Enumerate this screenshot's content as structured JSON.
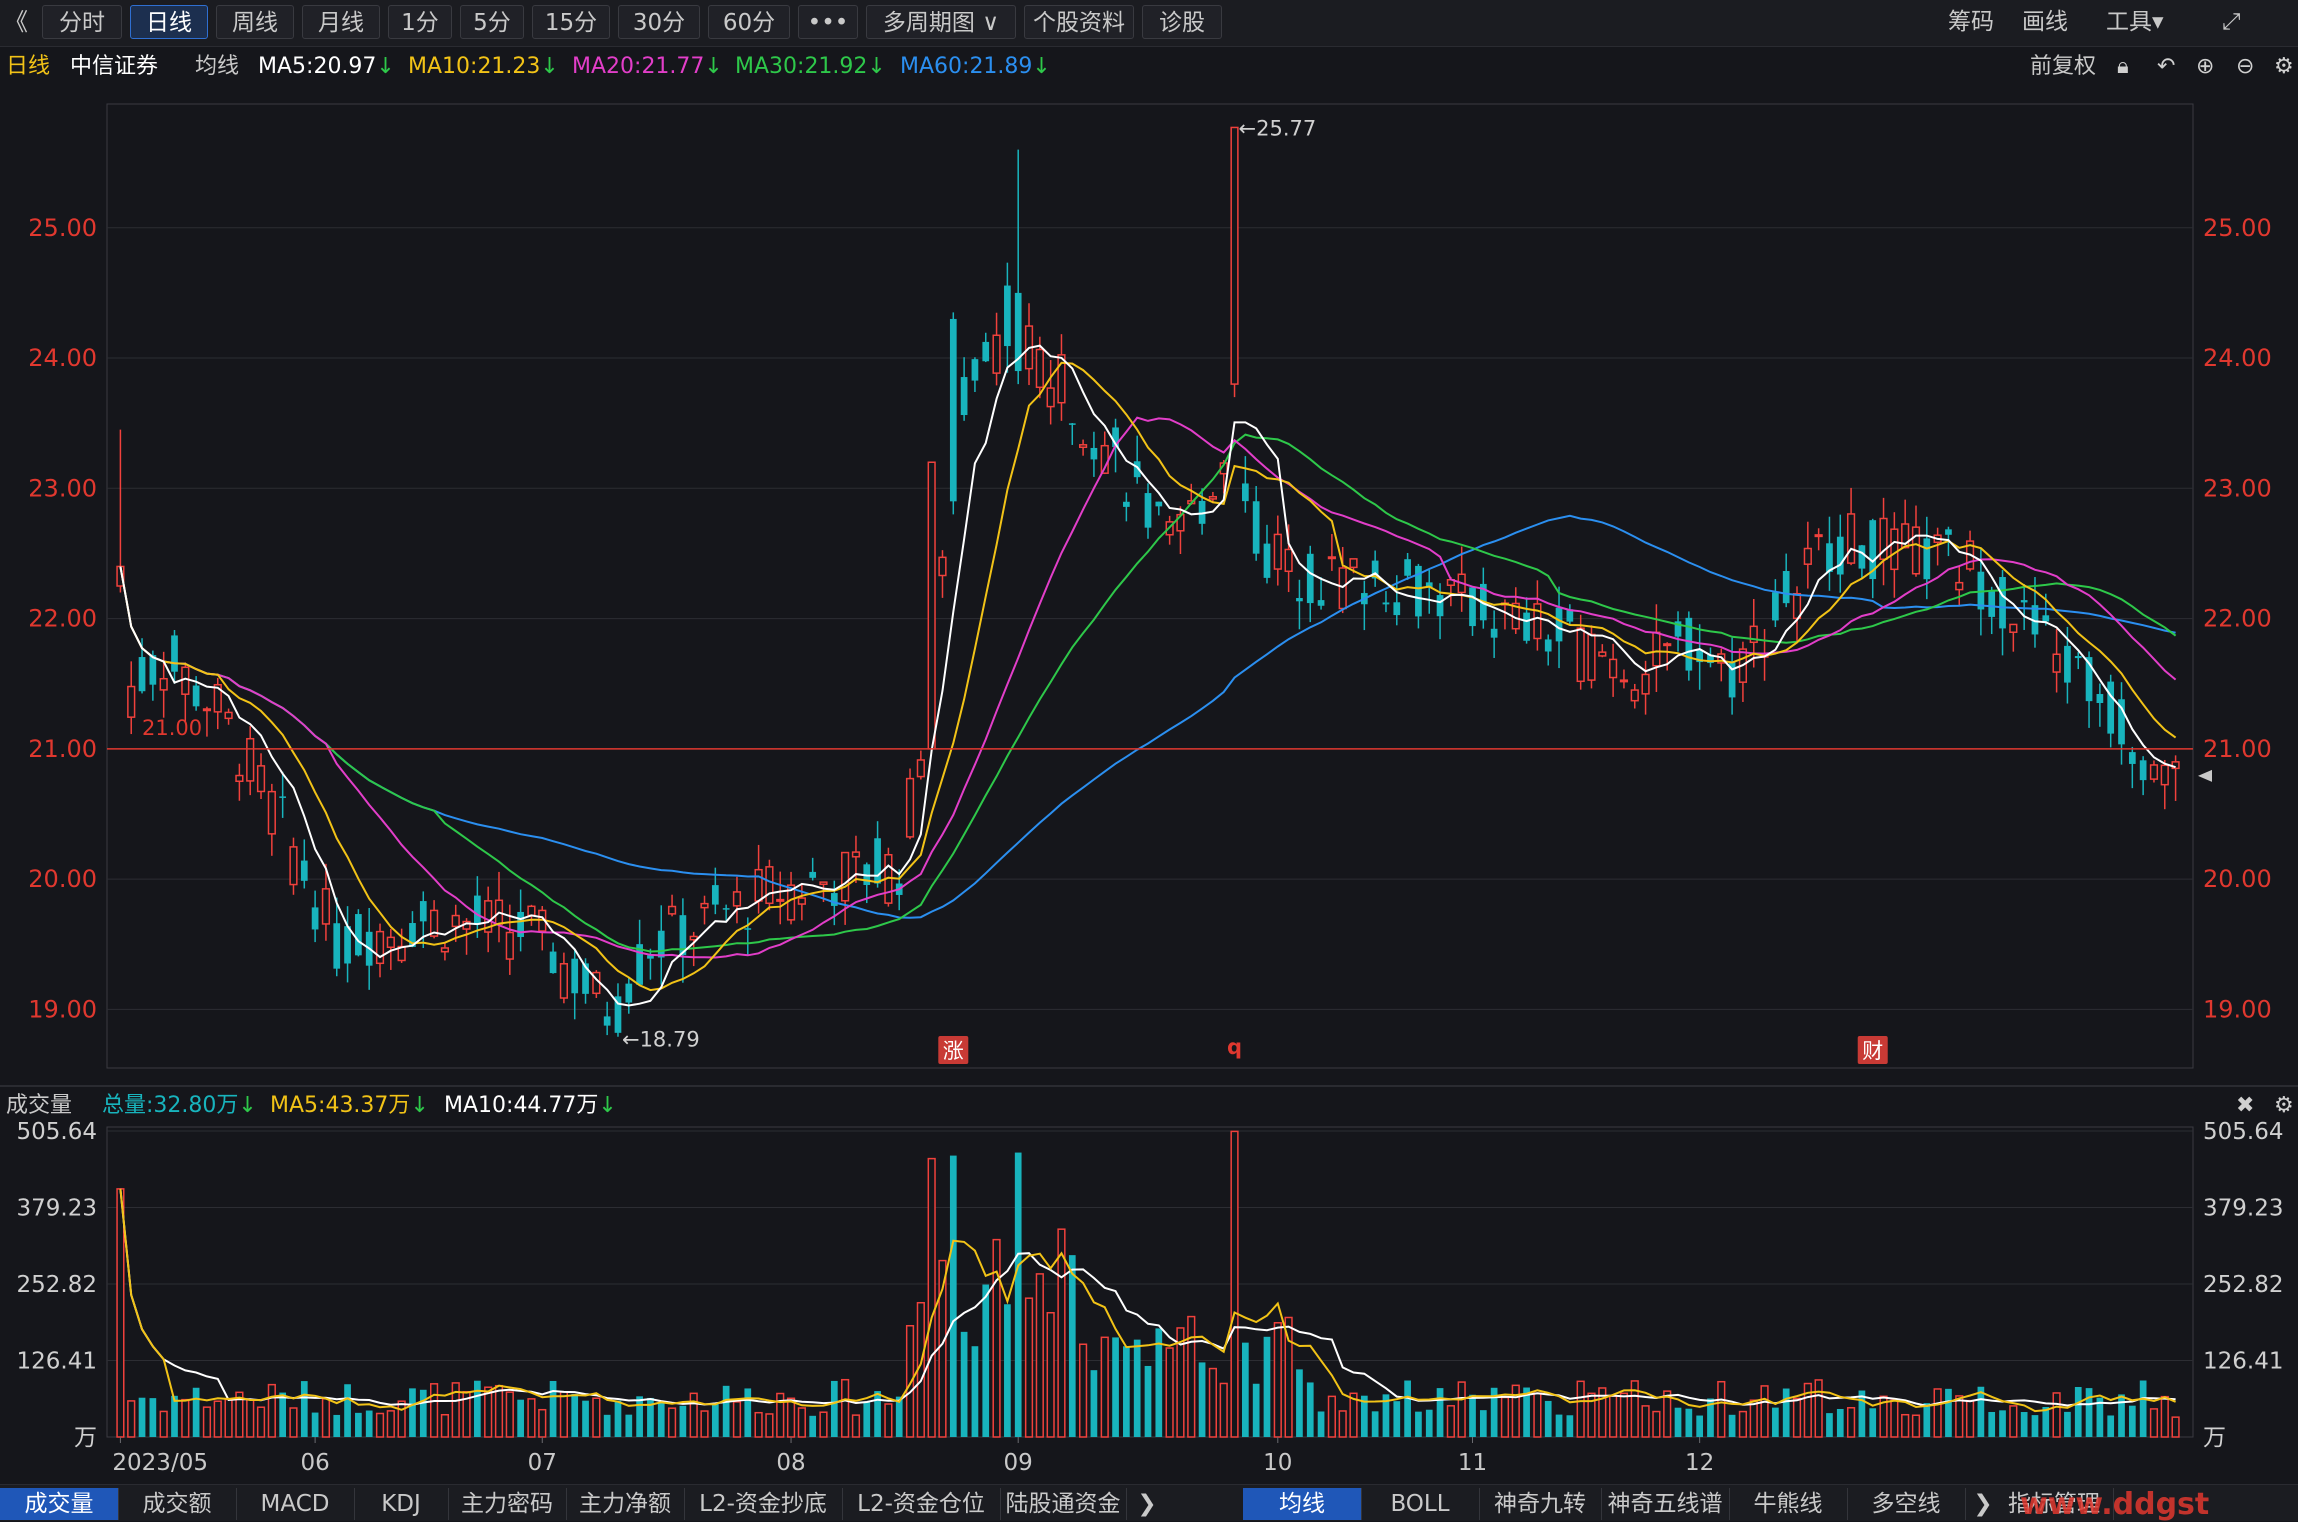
{
  "toolbar": {
    "back_glyph": "《",
    "period_tabs": [
      "分时",
      "日线",
      "周线",
      "月线",
      "1分",
      "5分",
      "15分",
      "30分",
      "60分",
      "•••",
      "多周期图 ∨",
      "个股资料",
      "诊股"
    ],
    "active_index": 1,
    "right_items": [
      "筹码",
      "画线",
      "工具▾"
    ],
    "fullscreen_icon": "⤢"
  },
  "ma_header": {
    "period": "日线",
    "stock_name": "中信证券",
    "indicator": "均线",
    "ma5": "MA5:20.97",
    "ma10": "MA10:21.23",
    "ma20": "MA20:21.77",
    "ma30": "MA30:21.92",
    "ma60": "MA60:21.89",
    "arrow": "↓",
    "adjust": "前复权",
    "colors": {
      "ma5": "#ffffff",
      "ma10": "#f2c317",
      "ma20": "#e23ec9",
      "ma30": "#2ec84a",
      "ma60": "#2b8ff0"
    }
  },
  "price_axis": {
    "ticks": [
      "25.00",
      "24.00",
      "23.00",
      "22.00",
      "21.00",
      "20.00",
      "19.00"
    ],
    "tick_values": [
      25,
      24,
      23,
      22,
      21,
      20,
      19
    ],
    "min": 18.55,
    "max": 25.95,
    "ref_line": 21.0,
    "ref_label": "21.00",
    "high_label": "←25.77",
    "low_label": "←18.79"
  },
  "markers": [
    "涨",
    "q",
    "财"
  ],
  "volume_header": {
    "title": "成交量",
    "total": "总量:32.80万",
    "ma5": "MA5:43.37万",
    "ma10": "MA10:44.77万",
    "arrow": "↓"
  },
  "volume_axis": {
    "ticks": [
      "505.64",
      "379.23",
      "252.82",
      "126.41",
      "万"
    ],
    "tick_values": [
      505.64,
      379.23,
      252.82,
      126.41,
      0
    ],
    "max": 505.64
  },
  "date_axis": [
    "2023/05",
    "06",
    "07",
    "08",
    "09",
    "10",
    "11",
    "12"
  ],
  "bottom_tabs_left": [
    "成交量",
    "成交额",
    "MACD",
    "KDJ",
    "主力密码",
    "主力净额",
    "L2-资金抄底",
    "L2-资金仓位",
    "陆股通资金"
  ],
  "bottom_tabs_right": [
    "均线",
    "BOLL",
    "神奇九转",
    "神奇五线谱",
    "牛熊线",
    "多空线",
    "指标管理"
  ],
  "watermark": "www.ddgst",
  "chart_data": {
    "type": "candlestick",
    "up_color": "#f0413c",
    "down_color": "#18b4bd",
    "bg": "#15161b",
    "month_start_index": [
      0,
      18,
      39,
      62,
      83,
      107,
      125,
      146
    ],
    "seed": 7
  }
}
